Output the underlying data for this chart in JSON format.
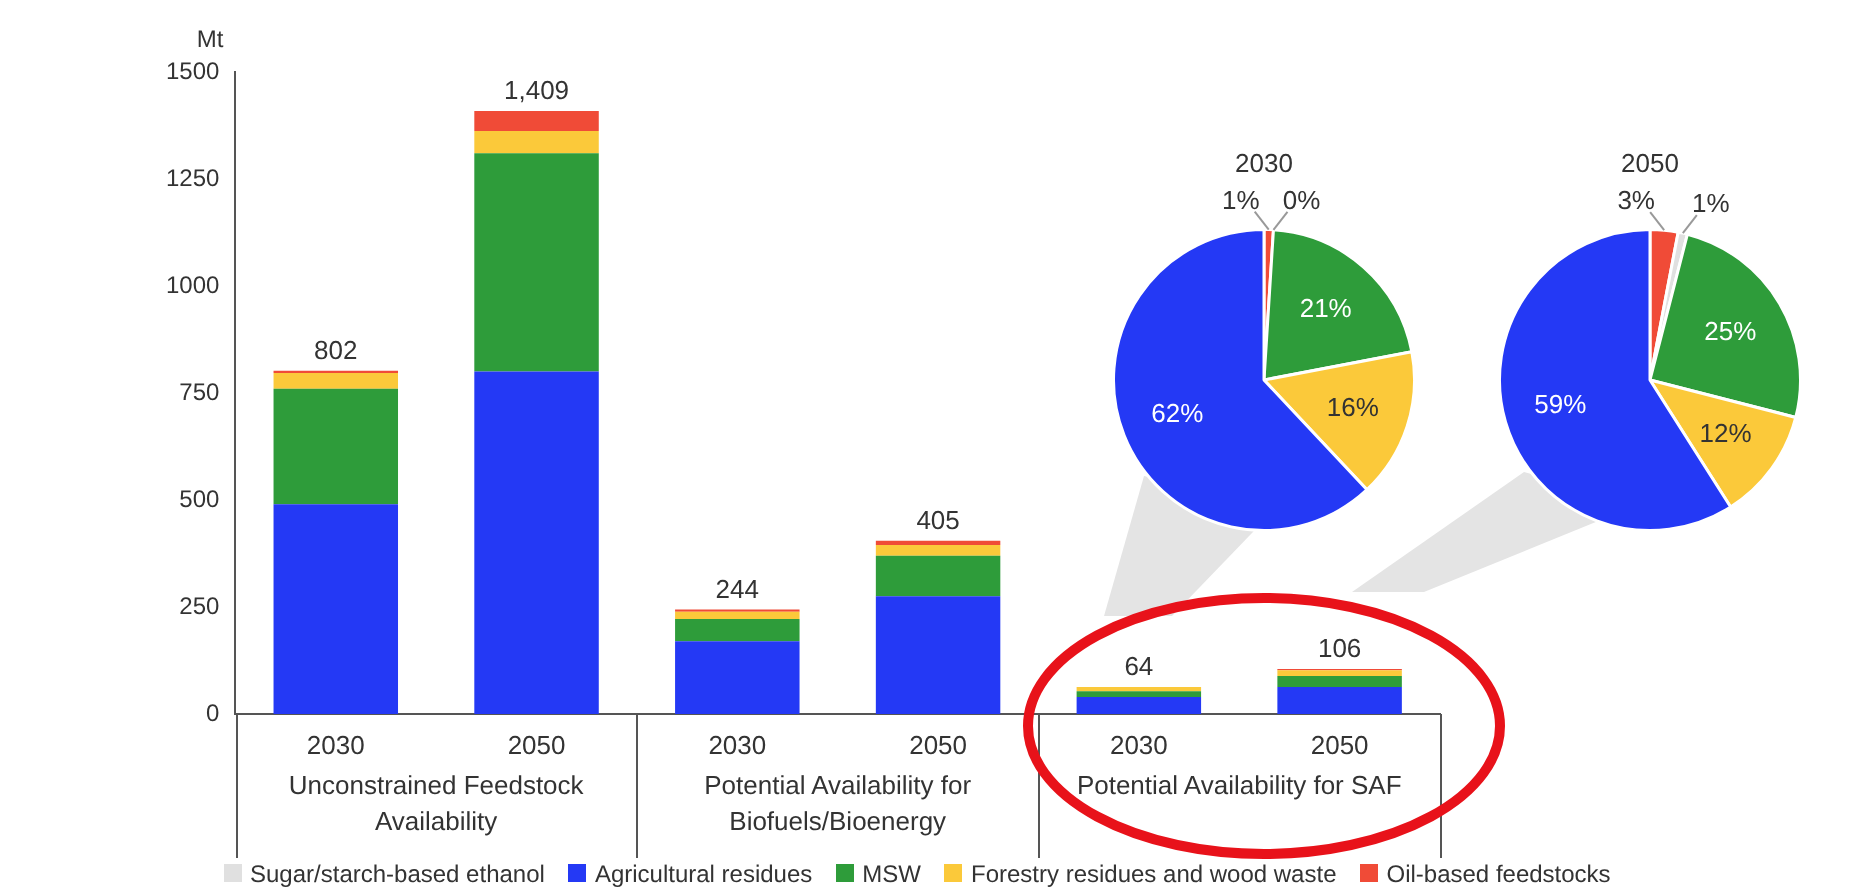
{
  "chart_data": [
    {
      "type": "bar",
      "stacked": true,
      "ylabel": "Mt",
      "categories": [
        "2030",
        "2050",
        "2030",
        "2050",
        "2030",
        "2050"
      ],
      "annotations": [
        "Unconstrained Feedstock Availability",
        "Potential Availability for Biofuels/Bioenergy",
        "Potential Availability for SAF"
      ],
      "series": [
        {
          "name": "Sugar/starch-based ethanol",
          "color": "#e0e0e0",
          "values": [
            0,
            0,
            0,
            0,
            0,
            null
          ]
        },
        {
          "name": "Agricultural residues",
          "color": "#2439f5",
          "values": [
            490,
            800,
            170,
            275,
            40,
            63
          ]
        },
        {
          "name": "MSW",
          "color": "#2e9c3a",
          "values": [
            270,
            510,
            52,
            95,
            13,
            26
          ]
        },
        {
          "name": "Forestry residues and wood waste",
          "color": "#fbc93a",
          "values": [
            37,
            52,
            17,
            25,
            10,
            13
          ]
        },
        {
          "name": "Oil-based feedstocks",
          "color": "#f04b37",
          "values": [
            5,
            47,
            5,
            10,
            null,
            3
          ]
        }
      ],
      "totals": [
        "802",
        "1,409",
        "244",
        "405",
        "64",
        "106"
      ],
      "ylim": [
        0,
        1500
      ],
      "yticks": [
        0,
        250,
        500,
        750,
        1000,
        1250,
        1500
      ],
      "grid": false,
      "legend": "bottom"
    },
    {
      "type": "pie",
      "title": "2030",
      "categories": [
        null,
        null,
        null,
        null,
        null
      ],
      "values": [
        1,
        0,
        21,
        16,
        62
      ],
      "value_labels": [
        "1%",
        "0%",
        "21%",
        "16%",
        "62%"
      ],
      "colors": [
        "#f04b37",
        "#e0e0e0",
        "#2e9c3a",
        "#fbc93a",
        "#2439f5"
      ]
    },
    {
      "type": "pie",
      "title": "2050",
      "categories": [
        null,
        null,
        null,
        null,
        null
      ],
      "values": [
        3,
        1,
        25,
        12,
        59
      ],
      "value_labels": [
        "3%",
        "1%",
        "25%",
        "12%",
        "59%"
      ],
      "colors": [
        "#f04b37",
        "#e0e0e0",
        "#2e9c3a",
        "#fbc93a",
        "#2439f5"
      ]
    }
  ]
}
